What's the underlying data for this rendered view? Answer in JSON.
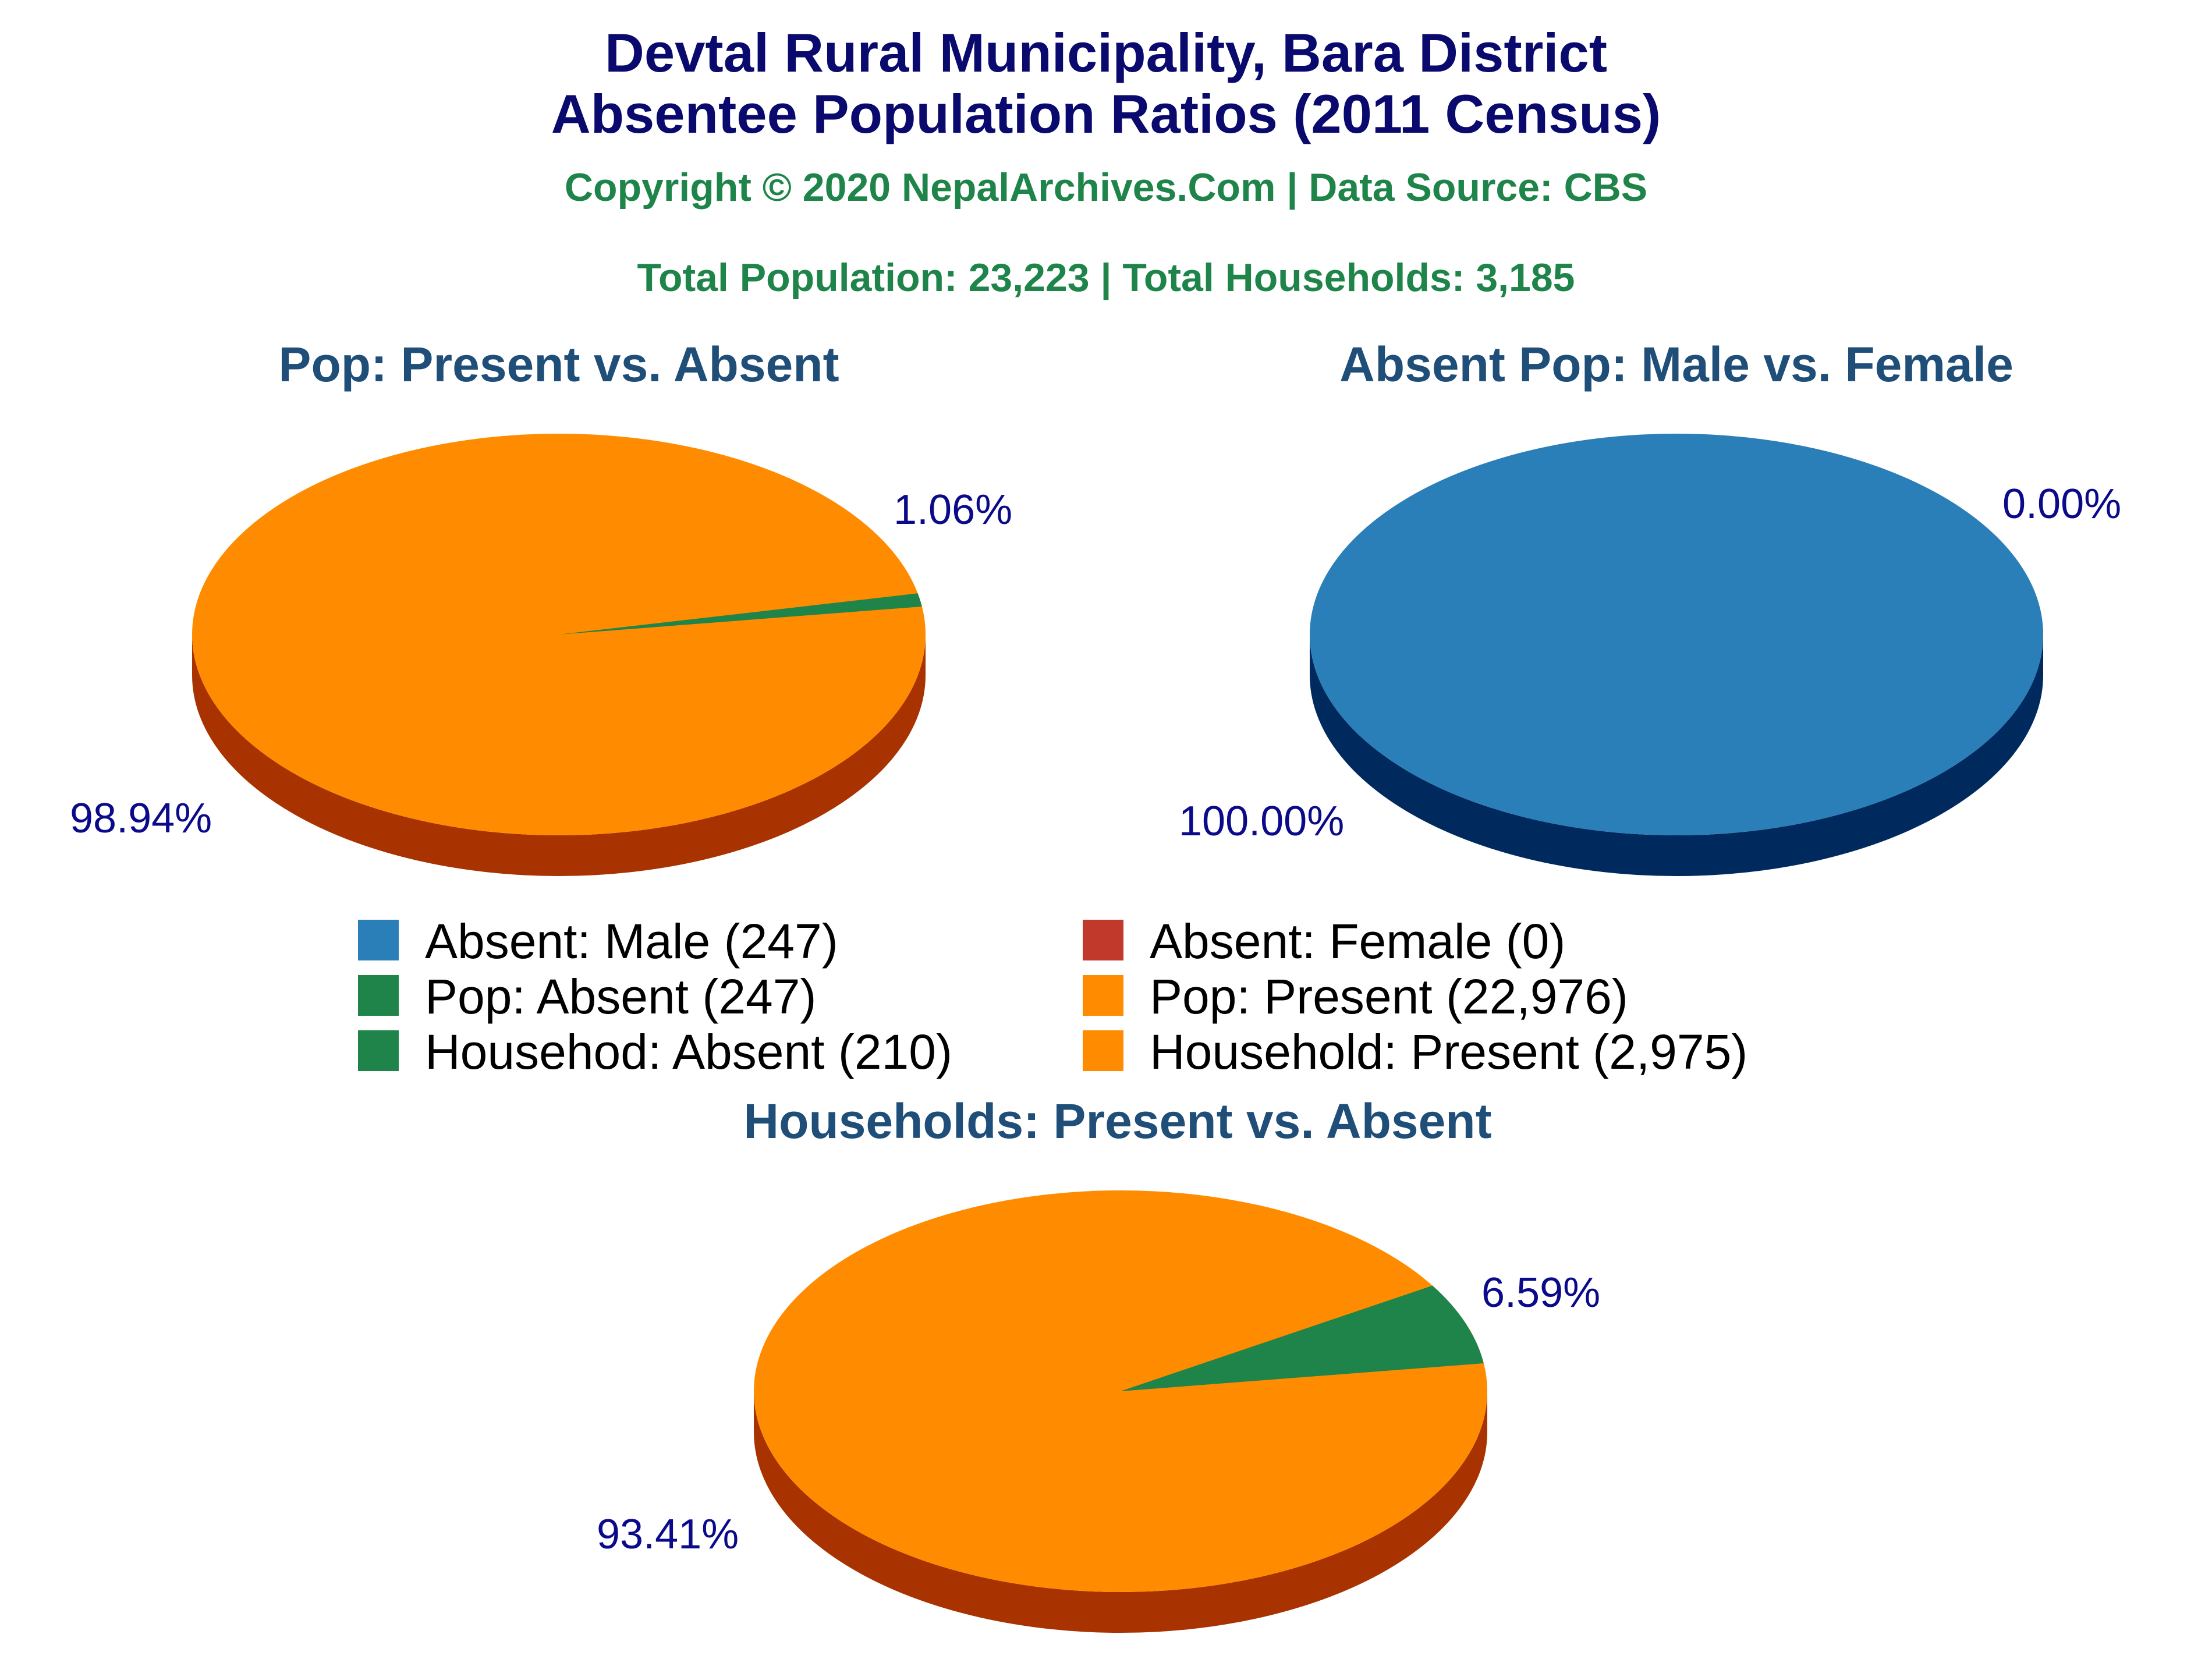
{
  "header": {
    "title_line1": "Devtal Rural Municipality, Bara District",
    "title_line2": "Absentee Population Ratios (2011 Census)",
    "copyright": "Copyright © 2020 NepalArchives.Com | Data Source: CBS",
    "totals": "Total Population: 23,223 | Total Households: 3,185"
  },
  "colors": {
    "title": "#0a0a6e",
    "subtitle": "#1e8449",
    "chart_title": "#1f4e79",
    "label": "#0a0a8a",
    "male": "#2b7fb8",
    "male_side": "#002a5e",
    "female": "#c0392b",
    "absent": "#1e8449",
    "present": "#ff8c00",
    "present_side": "#a83200"
  },
  "legend": [
    {
      "label": "Absent: Male (247)",
      "color": "#2b7fb8"
    },
    {
      "label": "Absent: Female (0)",
      "color": "#c0392b"
    },
    {
      "label": "Pop: Absent (247)",
      "color": "#1e8449"
    },
    {
      "label": "Pop: Present (22,976)",
      "color": "#ff8c00"
    },
    {
      "label": "Househod: Absent (210)",
      "color": "#1e8449"
    },
    {
      "label": "Household: Present (2,975)",
      "color": "#ff8c00"
    }
  ],
  "chart_data": [
    {
      "type": "pie",
      "title": "Pop: Present vs. Absent",
      "slices": [
        {
          "name": "Pop: Absent",
          "value": 247,
          "percent_label": "1.06%",
          "color": "#1e8449"
        },
        {
          "name": "Pop: Present",
          "value": 22976,
          "percent_label": "98.94%",
          "color": "#ff8c00"
        }
      ]
    },
    {
      "type": "pie",
      "title": "Absent Pop: Male vs. Female",
      "slices": [
        {
          "name": "Absent: Female",
          "value": 0,
          "percent_label": "0.00%",
          "color": "#c0392b"
        },
        {
          "name": "Absent: Male",
          "value": 247,
          "percent_label": "100.00%",
          "color": "#2b7fb8"
        }
      ]
    },
    {
      "type": "pie",
      "title": "Households: Present vs. Absent",
      "slices": [
        {
          "name": "Househod: Absent",
          "value": 210,
          "percent_label": "6.59%",
          "color": "#1e8449"
        },
        {
          "name": "Household: Present",
          "value": 2975,
          "percent_label": "93.41%",
          "color": "#ff8c00"
        }
      ]
    }
  ]
}
